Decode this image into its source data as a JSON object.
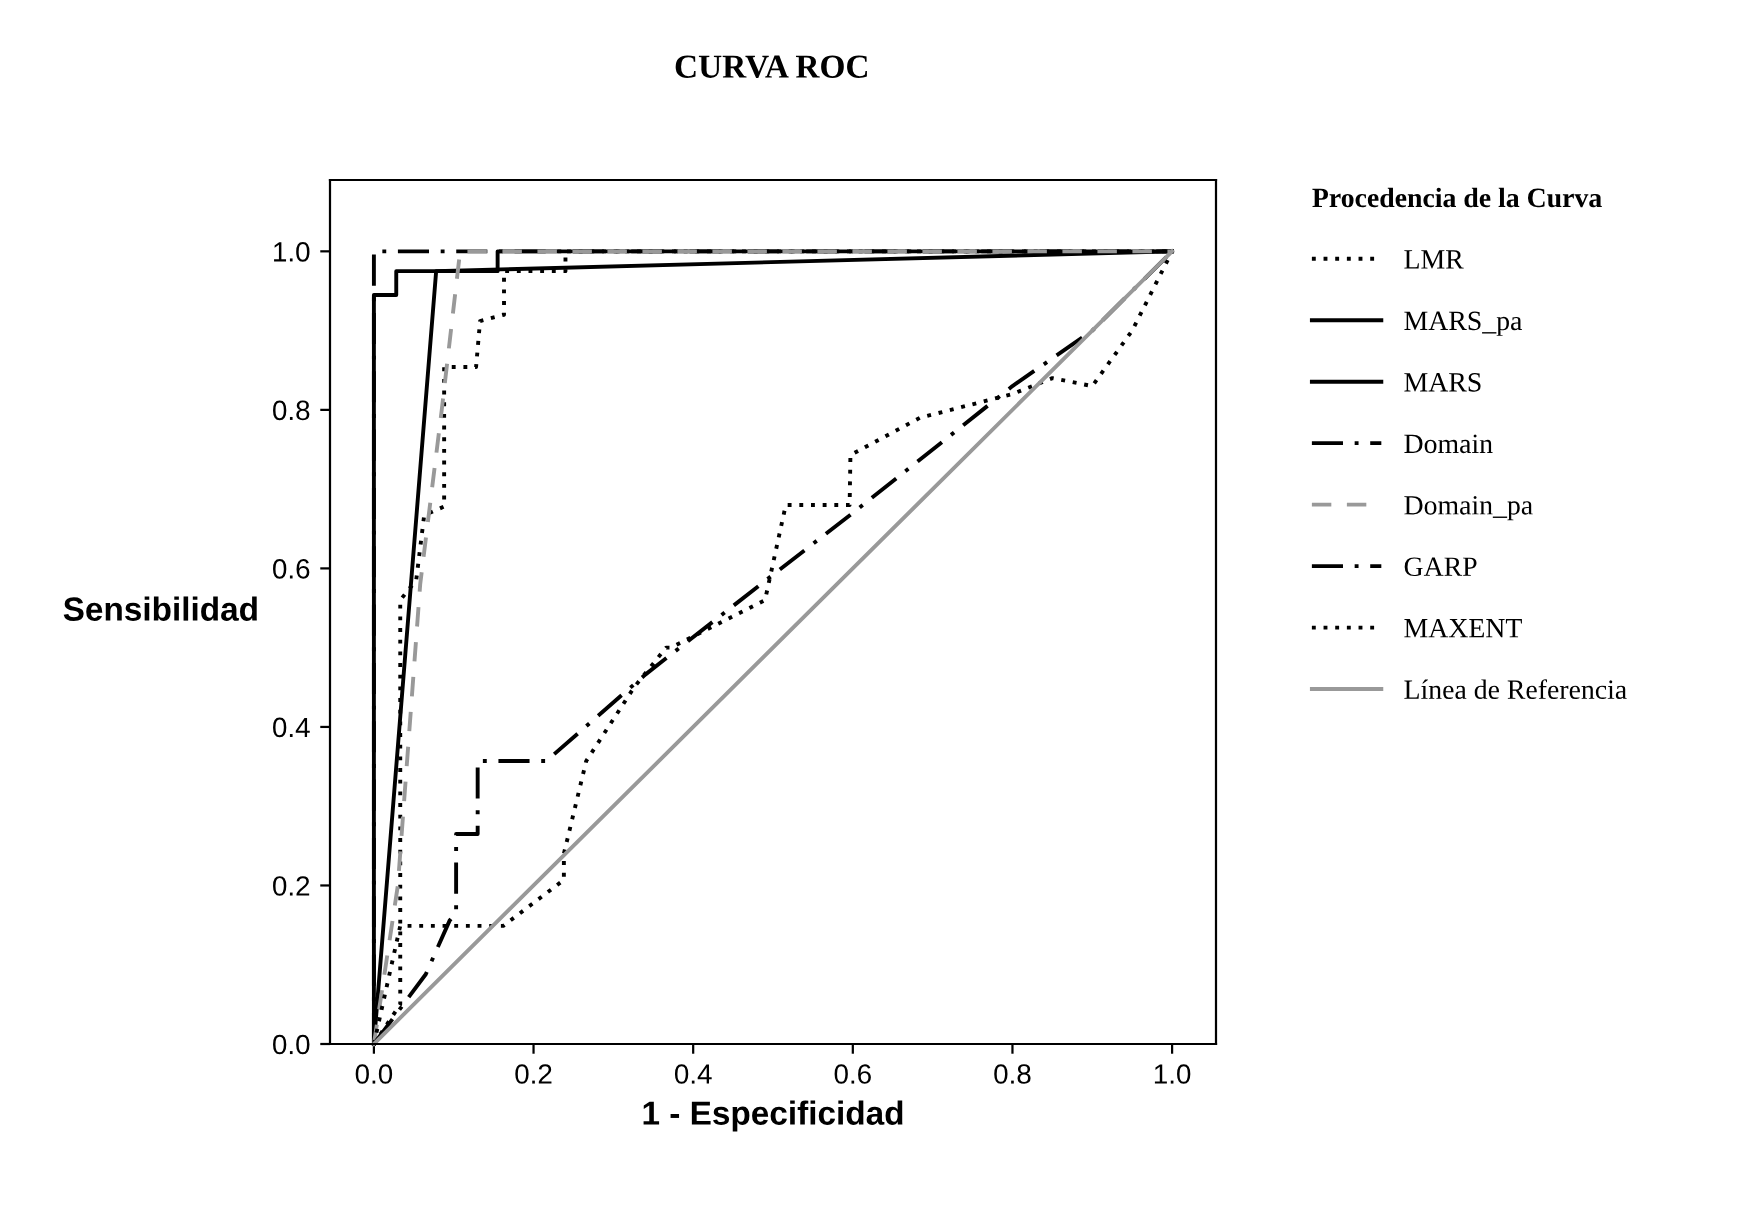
{
  "chart_data": {
    "type": "line",
    "title": "CURVA ROC",
    "xlabel": "1 - Especificidad",
    "ylabel": "Sensibilidad",
    "legend_title": "Procedencia de la Curva",
    "legend": "right",
    "grid": false,
    "marker": "none",
    "xlim": [
      -0.055,
      1.055
    ],
    "ylim": [
      0,
      1.09
    ],
    "xticks": [
      {
        "value": 0,
        "label": "0.0"
      },
      0.2,
      0.4,
      0.6,
      0.8,
      {
        "value": 1,
        "label": "1.0"
      }
    ],
    "yticks": [
      {
        "value": 0,
        "label": "0.0"
      },
      0.2,
      0.4,
      0.6,
      0.8,
      {
        "value": 1,
        "label": "1.0"
      }
    ],
    "series": [
      {
        "name": "LMR",
        "color": "#000000",
        "line_style": "dotted",
        "x": [
          0,
          0.033,
          0.033,
          0.053,
          0.063,
          0.088,
          0.088,
          0.128,
          0.133,
          0.163,
          0.163,
          0.24,
          0.24,
          1.0
        ],
        "values": [
          0,
          0.05,
          0.56,
          0.585,
          0.667,
          0.678,
          0.854,
          0.854,
          0.912,
          0.92,
          0.975,
          0.975,
          1.0,
          1.0
        ]
      },
      {
        "name": "MARS_pa",
        "color": "#000000",
        "line_style": "solid",
        "x": [
          0,
          0.078,
          1.0
        ],
        "values": [
          0,
          0.975,
          1.0
        ]
      },
      {
        "name": "MARS",
        "color": "#000000",
        "line_style": "solid",
        "x": [
          0,
          0,
          0.028,
          0.028,
          0.155,
          0.155,
          1.0
        ],
        "values": [
          0,
          0.945,
          0.945,
          0.975,
          0.975,
          1.0,
          1.0
        ]
      },
      {
        "name": "Domain",
        "color": "#000000",
        "line_style": "dashdot",
        "x": [
          0,
          0,
          1.0
        ],
        "values": [
          0,
          1.0,
          1.0
        ]
      },
      {
        "name": "Domain_pa",
        "color": "#999999",
        "line_style": "dashed",
        "x": [
          0,
          0.03,
          0.058,
          0.085,
          0.108,
          1.0
        ],
        "values": [
          0,
          0.2,
          0.58,
          0.8,
          1.0,
          1.0
        ]
      },
      {
        "name": "GARP",
        "color": "#000000",
        "line_style": "dashdot",
        "x": [
          0,
          0.065,
          0.095,
          0.103,
          0.103,
          0.13,
          0.13,
          0.216,
          0.34,
          0.5,
          0.6,
          0.8,
          0.9,
          1.0
        ],
        "values": [
          0,
          0.088,
          0.156,
          0.165,
          0.265,
          0.265,
          0.357,
          0.357,
          0.466,
          0.592,
          0.67,
          0.83,
          0.9,
          1.0
        ]
      },
      {
        "name": "MAXENT",
        "color": "#000000",
        "line_style": "dotted",
        "x": [
          0,
          0.033,
          0.162,
          0.238,
          0.238,
          0.266,
          0.326,
          0.366,
          0.372,
          0.49,
          0.516,
          0.596,
          0.597,
          0.684,
          0.8,
          0.85,
          0.9,
          0.95,
          1.0
        ],
        "values": [
          0,
          0.149,
          0.149,
          0.207,
          0.24,
          0.357,
          0.45,
          0.5,
          0.5,
          0.56,
          0.68,
          0.68,
          0.743,
          0.79,
          0.82,
          0.84,
          0.83,
          0.9,
          1.0
        ]
      },
      {
        "name": "Línea de Referencia",
        "color": "#999999",
        "line_style": "solid",
        "x": [
          0,
          1.0
        ],
        "values": [
          0,
          1.0
        ]
      }
    ]
  }
}
